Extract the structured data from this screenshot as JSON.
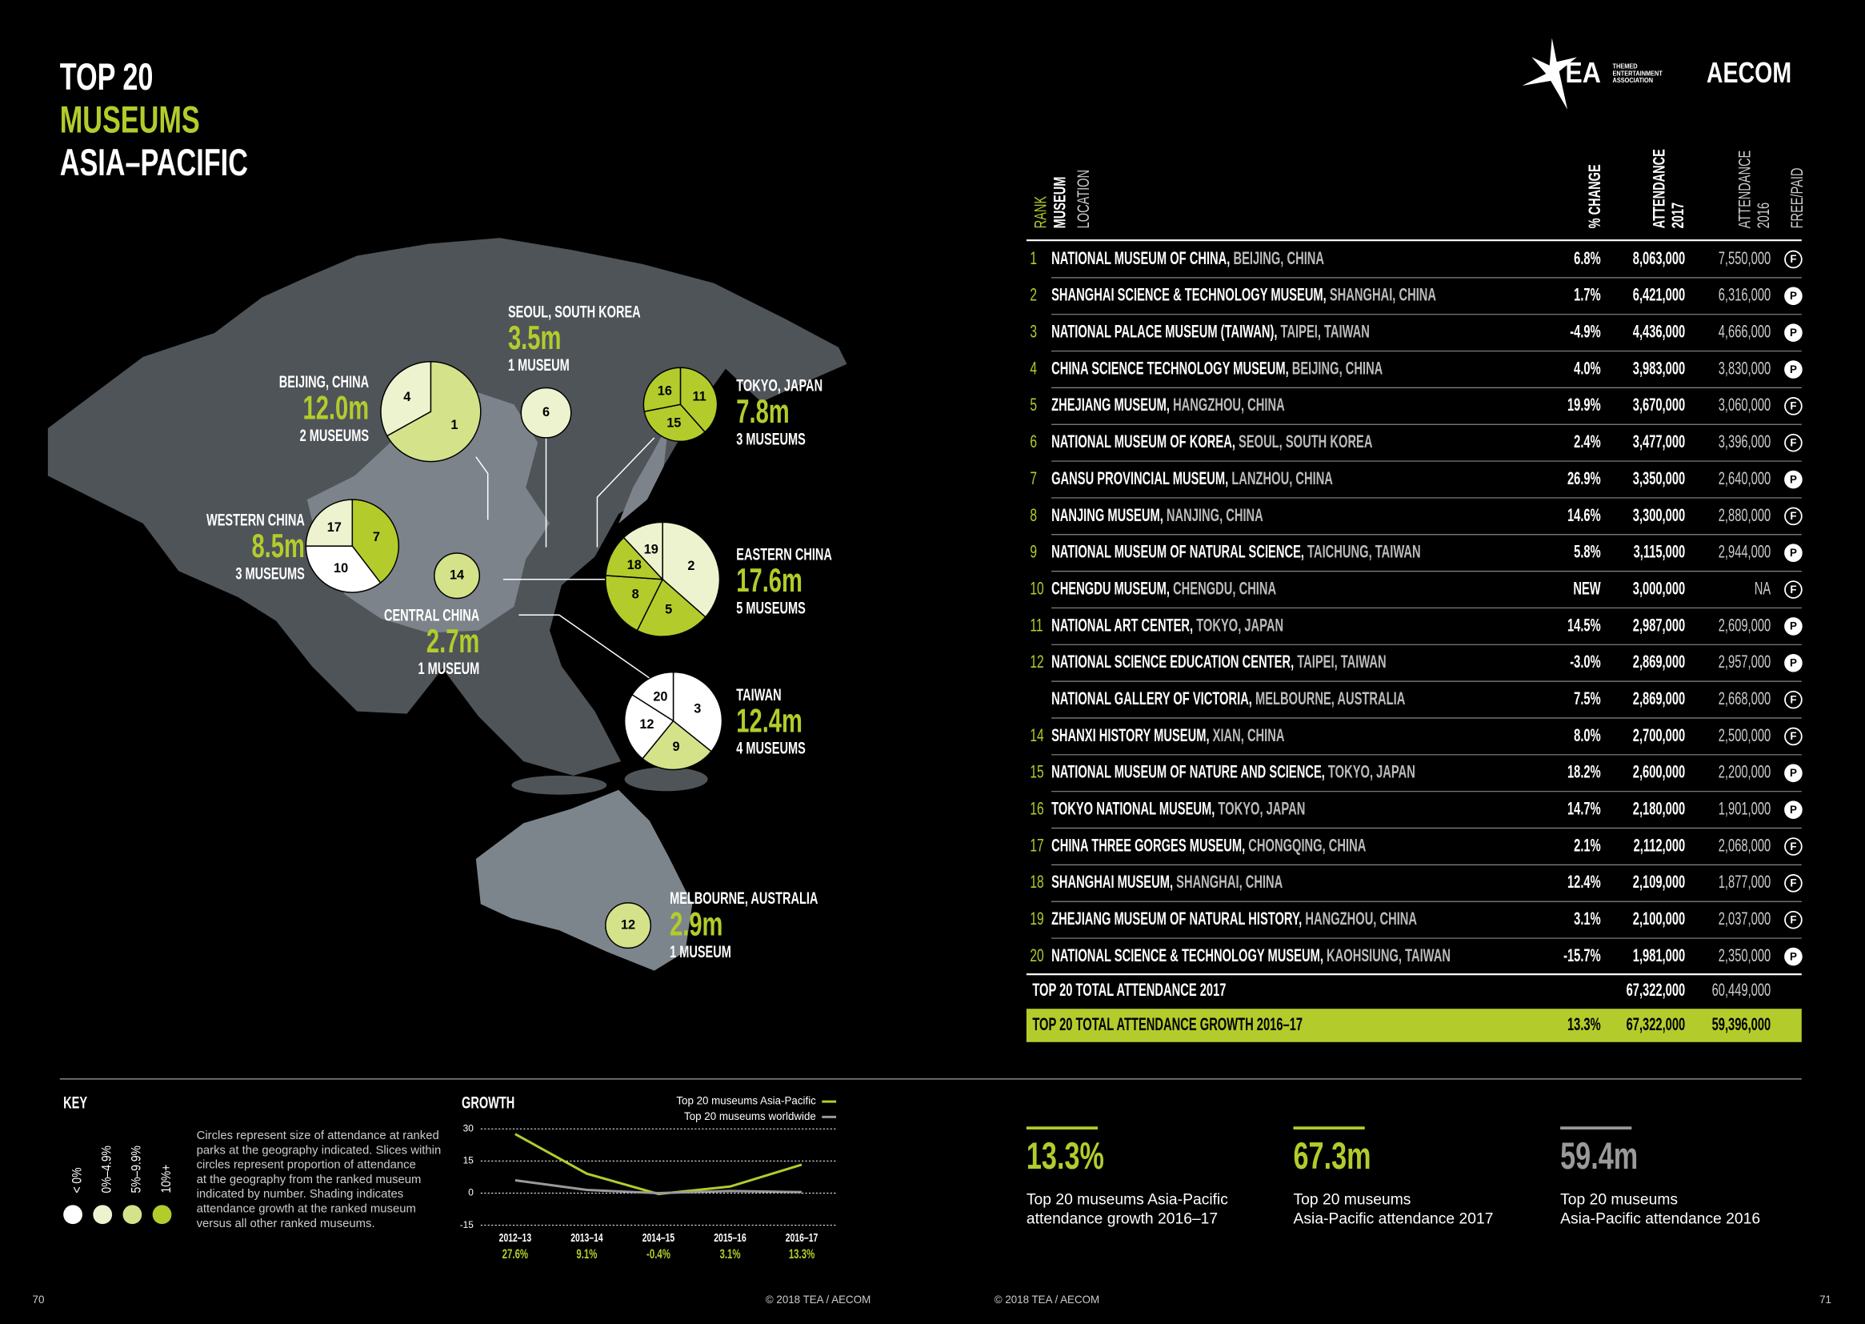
{
  "header": {
    "title_lines": [
      "TOP 20",
      "MUSEUMS",
      "ASIA–PACIFIC"
    ],
    "tea_logo": "TEA",
    "tea_subtitle": [
      "THEMED",
      "ENTERTAINMENT",
      "ASSOCIATION"
    ],
    "aecom_logo": "AECOM"
  },
  "table": {
    "columns": {
      "rank": "RANK",
      "museum": "MUSEUM",
      "location": "LOCATION",
      "change": "% CHANGE",
      "att2017": [
        "ATTENDANCE",
        "2017"
      ],
      "att2016": [
        "ATTENDANCE",
        "2016"
      ],
      "type": "FREE/PAID"
    },
    "rows": [
      {
        "rank": 1,
        "name": "NATIONAL MUSEUM OF CHINA,",
        "location": "BEIJING, CHINA",
        "change": "6.8%",
        "att2017": "8,063,000",
        "att2016": "7,550,000",
        "type": "F"
      },
      {
        "rank": 2,
        "name": "SHANGHAI SCIENCE & TECHNOLOGY MUSEUM,",
        "location": "SHANGHAI, CHINA",
        "change": "1.7%",
        "att2017": "6,421,000",
        "att2016": "6,316,000",
        "type": "P"
      },
      {
        "rank": 3,
        "name": "NATIONAL PALACE MUSEUM (TAIWAN),",
        "location": "TAIPEI, TAIWAN",
        "change": "-4.9%",
        "att2017": "4,436,000",
        "att2016": "4,666,000",
        "type": "P"
      },
      {
        "rank": 4,
        "name": "CHINA SCIENCE TECHNOLOGY MUSEUM,",
        "location": "BEIJING, CHINA",
        "change": "4.0%",
        "att2017": "3,983,000",
        "att2016": "3,830,000",
        "type": "P"
      },
      {
        "rank": 5,
        "name": "ZHEJIANG MUSEUM,",
        "location": "HANGZHOU, CHINA",
        "change": "19.9%",
        "att2017": "3,670,000",
        "att2016": "3,060,000",
        "type": "F"
      },
      {
        "rank": 6,
        "name": "NATIONAL MUSEUM OF KOREA,",
        "location": "SEOUL, SOUTH KOREA",
        "change": "2.4%",
        "att2017": "3,477,000",
        "att2016": "3,396,000",
        "type": "F"
      },
      {
        "rank": 7,
        "name": "GANSU PROVINCIAL MUSEUM,",
        "location": "LANZHOU, CHINA",
        "change": "26.9%",
        "att2017": "3,350,000",
        "att2016": "2,640,000",
        "type": "P"
      },
      {
        "rank": 8,
        "name": "NANJING MUSEUM,",
        "location": "NANJING, CHINA",
        "change": "14.6%",
        "att2017": "3,300,000",
        "att2016": "2,880,000",
        "type": "F"
      },
      {
        "rank": 9,
        "name": "NATIONAL MUSEUM OF NATURAL SCIENCE,",
        "location": "TAICHUNG, TAIWAN",
        "change": "5.8%",
        "att2017": "3,115,000",
        "att2016": "2,944,000",
        "type": "P"
      },
      {
        "rank": 10,
        "name": "CHENGDU MUSEUM,",
        "location": "CHENGDU, CHINA",
        "change": "NEW",
        "att2017": "3,000,000",
        "att2016": "NA",
        "type": "F"
      },
      {
        "rank": 11,
        "name": "NATIONAL ART CENTER,",
        "location": "TOKYO, JAPAN",
        "change": "14.5%",
        "att2017": "2,987,000",
        "att2016": "2,609,000",
        "type": "P"
      },
      {
        "rank": 12,
        "name": "NATIONAL SCIENCE EDUCATION CENTER,",
        "location": "TAIPEI, TAIWAN",
        "change": "-3.0%",
        "att2017": "2,869,000",
        "att2016": "2,957,000",
        "type": "P"
      },
      {
        "rank": null,
        "name": "NATIONAL GALLERY OF VICTORIA,",
        "location": "MELBOURNE, AUSTRALIA",
        "change": "7.5%",
        "att2017": "2,869,000",
        "att2016": "2,668,000",
        "type": "F"
      },
      {
        "rank": 14,
        "name": "SHANXI HISTORY MUSEUM,",
        "location": "XIAN, CHINA",
        "change": "8.0%",
        "att2017": "2,700,000",
        "att2016": "2,500,000",
        "type": "F"
      },
      {
        "rank": 15,
        "name": "NATIONAL MUSEUM OF NATURE AND SCIENCE,",
        "location": "TOKYO, JAPAN",
        "change": "18.2%",
        "att2017": "2,600,000",
        "att2016": "2,200,000",
        "type": "P"
      },
      {
        "rank": 16,
        "name": "TOKYO NATIONAL MUSEUM,",
        "location": "TOKYO, JAPAN",
        "change": "14.7%",
        "att2017": "2,180,000",
        "att2016": "1,901,000",
        "type": "P"
      },
      {
        "rank": 17,
        "name": "CHINA THREE GORGES MUSEUM,",
        "location": "CHONGQING, CHINA",
        "change": "2.1%",
        "att2017": "2,112,000",
        "att2016": "2,068,000",
        "type": "F"
      },
      {
        "rank": 18,
        "name": "SHANGHAI MUSEUM,",
        "location": "SHANGHAI, CHINA",
        "change": "12.4%",
        "att2017": "2,109,000",
        "att2016": "1,877,000",
        "type": "F"
      },
      {
        "rank": 19,
        "name": "ZHEJIANG MUSEUM OF NATURAL HISTORY,",
        "location": "HANGZHOU, CHINA",
        "change": "3.1%",
        "att2017": "2,100,000",
        "att2016": "2,037,000",
        "type": "F"
      },
      {
        "rank": 20,
        "name": "NATIONAL SCIENCE & TECHNOLOGY MUSEUM,",
        "location": "KAOHSIUNG, TAIWAN",
        "change": "-15.7%",
        "att2017": "1,981,000",
        "att2016": "2,350,000",
        "type": "P"
      }
    ],
    "total": {
      "label": "TOP 20 TOTAL ATTENDANCE 2017",
      "att2017": "67,322,000",
      "att2016": "60,449,000"
    },
    "growth": {
      "label": "TOP 20 TOTAL ATTENDANCE GROWTH 2016–17",
      "change": "13.3%",
      "att2017": "67,322,000",
      "att2016": "59,396,000"
    }
  },
  "map": {
    "regions": [
      {
        "name": "BEIJING, CHINA",
        "total": "12.0m",
        "count": "2 MUSEUMS",
        "slices": [
          {
            "label": "1",
            "value": 8063000,
            "color": "#d4e28a"
          },
          {
            "label": "4",
            "value": 3983000,
            "color": "#eef3cf"
          }
        ]
      },
      {
        "name": "SEOUL, SOUTH KOREA",
        "total": "3.5m",
        "count": "1 MUSEUM",
        "slices": [
          {
            "label": "6",
            "value": 3477000,
            "color": "#eef3cf"
          }
        ]
      },
      {
        "name": "TOKYO, JAPAN",
        "total": "7.8m",
        "count": "3 MUSEUMS",
        "slices": [
          {
            "label": "11",
            "value": 2987000,
            "color": "#b3cc2c"
          },
          {
            "label": "15",
            "value": 2600000,
            "color": "#b3cc2c"
          },
          {
            "label": "16",
            "value": 2180000,
            "color": "#b3cc2c"
          }
        ]
      },
      {
        "name": "WESTERN CHINA",
        "total": "8.5m",
        "count": "3 MUSEUMS",
        "slices": [
          {
            "label": "7",
            "value": 3350000,
            "color": "#b3cc2c"
          },
          {
            "label": "10",
            "value": 3000000,
            "color": "#ffffff"
          },
          {
            "label": "17",
            "value": 2112000,
            "color": "#eef3cf"
          }
        ]
      },
      {
        "name": "CENTRAL CHINA",
        "total": "2.7m",
        "count": "1 MUSEUM",
        "slices": [
          {
            "label": "14",
            "value": 2700000,
            "color": "#d4e28a"
          }
        ]
      },
      {
        "name": "EASTERN CHINA",
        "total": "17.6m",
        "count": "5 MUSEUMS",
        "slices": [
          {
            "label": "2",
            "value": 6421000,
            "color": "#eef3cf"
          },
          {
            "label": "5",
            "value": 3670000,
            "color": "#b3cc2c"
          },
          {
            "label": "8",
            "value": 3300000,
            "color": "#b3cc2c"
          },
          {
            "label": "18",
            "value": 2109000,
            "color": "#b3cc2c"
          },
          {
            "label": "19",
            "value": 2100000,
            "color": "#eef3cf"
          }
        ]
      },
      {
        "name": "TAIWAN",
        "total": "12.4m",
        "count": "4 MUSEUMS",
        "slices": [
          {
            "label": "3",
            "value": 4436000,
            "color": "#ffffff"
          },
          {
            "label": "9",
            "value": 3115000,
            "color": "#d4e28a"
          },
          {
            "label": "12",
            "value": 2869000,
            "color": "#ffffff"
          },
          {
            "label": "20",
            "value": 1981000,
            "color": "#ffffff"
          }
        ]
      },
      {
        "name": "MELBOURNE, AUSTRALIA",
        "total": "2.9m",
        "count": "1 MUSEUM",
        "slices": [
          {
            "label": "12",
            "value": 2869000,
            "color": "#d4e28a"
          }
        ]
      }
    ]
  },
  "key": {
    "title": "KEY",
    "levels": [
      {
        "label": "< 0%",
        "color": "#ffffff"
      },
      {
        "label": "0%–4.9%",
        "color": "#eef3cf"
      },
      {
        "label": "5%–9.9%",
        "color": "#d4e28a"
      },
      {
        "label": "10%+",
        "color": "#b3cc2c"
      }
    ],
    "text": [
      "Circles represent size of attendance at ranked",
      "parks at the geography indicated. Slices within",
      "circles represent proportion of attendance",
      "at the geography from the ranked museum",
      "indicated by number. Shading indicates",
      "attendance growth at the ranked museum",
      "versus all other ranked museums."
    ]
  },
  "growth_chart": {
    "type": "line",
    "title": "GROWTH",
    "categories": [
      "2012–13",
      "2013–14",
      "2014–15",
      "2015–16",
      "2016–17"
    ],
    "series": [
      {
        "name": "Top 20 museums Asia-Pacific",
        "color": "#b3cc2c",
        "values": [
          27.6,
          9.1,
          -0.4,
          3.1,
          13.3
        ],
        "value_labels": [
          "27.6%",
          "9.1%",
          "-0.4%",
          "3.1%",
          "13.3%"
        ]
      },
      {
        "name": "Top 20 museums worldwide",
        "color": "#9a9a9a",
        "values": [
          6,
          1.5,
          0,
          1,
          0.5
        ]
      }
    ],
    "ylim": [
      -15,
      30
    ],
    "yticks": [
      -15,
      0,
      15,
      30
    ],
    "grid": true
  },
  "stats": [
    {
      "value": "13.3%",
      "color": "#b3cc2c",
      "lines": [
        "Top 20 museums Asia-Pacific",
        "attendance growth 2016–17"
      ]
    },
    {
      "value": "67.3m",
      "color": "#b3cc2c",
      "lines": [
        "Top 20 museums",
        "Asia-Pacific attendance 2017"
      ]
    },
    {
      "value": "59.4m",
      "color": "#9a9a9a",
      "lines": [
        "Top 20 museums",
        "Asia-Pacific attendance 2016"
      ]
    }
  ],
  "footer": {
    "left_page": "70",
    "left_copyright": "© 2018 TEA / AECOM",
    "right_copyright": "© 2018 TEA / AECOM",
    "right_page": "71"
  }
}
